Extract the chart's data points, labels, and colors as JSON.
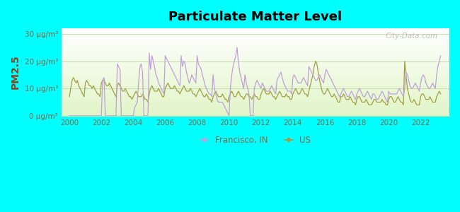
{
  "title": "Particulate Matter Level",
  "ylabel": "PM2.5",
  "ylim": [
    0,
    32
  ],
  "yticks": [
    0,
    10,
    20,
    30
  ],
  "ytick_labels": [
    "0 μg/m³",
    "10 μg/m³",
    "20 μg/m³",
    "30 μg/m³"
  ],
  "xlim": [
    1999.5,
    2023.8
  ],
  "xticks": [
    2000,
    2002,
    2004,
    2006,
    2008,
    2010,
    2012,
    2014,
    2016,
    2018,
    2020,
    2022
  ],
  "background_outer": "#00ffff",
  "francisco_color": "#c0a0d8",
  "us_color": "#a0a040",
  "ylabel_color": "#884422",
  "tick_color": "#886644",
  "grid_color": "#c8e0b0",
  "legend_francisco": "Francisco, IN",
  "legend_us": "US",
  "watermark": "City-Data.com",
  "francisco_x": [
    2000.0,
    2000.08,
    2000.17,
    2000.25,
    2000.33,
    2000.42,
    2000.5,
    2000.58,
    2000.67,
    2000.75,
    2000.83,
    2000.92,
    2001.0,
    2001.08,
    2001.17,
    2001.25,
    2001.33,
    2001.42,
    2001.5,
    2001.58,
    2001.67,
    2001.75,
    2001.83,
    2001.92,
    2002.0,
    2002.08,
    2002.17,
    2002.25,
    2002.33,
    2002.42,
    2002.5,
    2002.58,
    2002.67,
    2002.75,
    2002.83,
    2002.92,
    2003.0,
    2003.08,
    2003.17,
    2003.25,
    2003.33,
    2003.42,
    2003.5,
    2003.58,
    2003.67,
    2003.75,
    2003.83,
    2003.92,
    2004.0,
    2004.08,
    2004.17,
    2004.25,
    2004.33,
    2004.42,
    2004.5,
    2004.58,
    2004.67,
    2004.75,
    2004.83,
    2004.92,
    2005.0,
    2005.08,
    2005.17,
    2005.25,
    2005.33,
    2005.42,
    2005.5,
    2005.58,
    2005.67,
    2005.75,
    2005.83,
    2005.92,
    2006.0,
    2006.08,
    2006.17,
    2006.25,
    2006.33,
    2006.42,
    2006.5,
    2006.58,
    2006.67,
    2006.75,
    2006.83,
    2006.92,
    2007.0,
    2007.08,
    2007.17,
    2007.25,
    2007.33,
    2007.42,
    2007.5,
    2007.58,
    2007.67,
    2007.75,
    2007.83,
    2007.92,
    2008.0,
    2008.08,
    2008.17,
    2008.25,
    2008.33,
    2008.42,
    2008.5,
    2008.58,
    2008.67,
    2008.75,
    2008.83,
    2008.92,
    2009.0,
    2009.08,
    2009.17,
    2009.25,
    2009.33,
    2009.42,
    2009.5,
    2009.58,
    2009.67,
    2009.75,
    2009.83,
    2009.92,
    2010.0,
    2010.08,
    2010.17,
    2010.25,
    2010.33,
    2010.42,
    2010.5,
    2010.58,
    2010.67,
    2010.75,
    2010.83,
    2010.92,
    2011.0,
    2011.08,
    2011.17,
    2011.25,
    2011.33,
    2011.42,
    2011.5,
    2011.58,
    2011.67,
    2011.75,
    2011.83,
    2011.92,
    2012.0,
    2012.08,
    2012.17,
    2012.25,
    2012.33,
    2012.42,
    2012.5,
    2012.58,
    2012.67,
    2012.75,
    2012.83,
    2012.92,
    2013.0,
    2013.08,
    2013.17,
    2013.25,
    2013.33,
    2013.42,
    2013.5,
    2013.58,
    2013.67,
    2013.75,
    2013.83,
    2013.92,
    2014.0,
    2014.08,
    2014.17,
    2014.25,
    2014.33,
    2014.42,
    2014.5,
    2014.58,
    2014.67,
    2014.75,
    2014.83,
    2014.92,
    2015.0,
    2015.08,
    2015.17,
    2015.25,
    2015.33,
    2015.42,
    2015.5,
    2015.58,
    2015.67,
    2015.75,
    2015.83,
    2015.92,
    2016.0,
    2016.08,
    2016.17,
    2016.25,
    2016.33,
    2016.42,
    2016.5,
    2016.58,
    2016.67,
    2016.75,
    2016.83,
    2016.92,
    2017.0,
    2017.08,
    2017.17,
    2017.25,
    2017.33,
    2017.42,
    2017.5,
    2017.58,
    2017.67,
    2017.75,
    2017.83,
    2017.92,
    2018.0,
    2018.08,
    2018.17,
    2018.25,
    2018.33,
    2018.42,
    2018.5,
    2018.58,
    2018.67,
    2018.75,
    2018.83,
    2018.92,
    2019.0,
    2019.08,
    2019.17,
    2019.25,
    2019.33,
    2019.42,
    2019.5,
    2019.58,
    2019.67,
    2019.75,
    2019.83,
    2019.92,
    2020.0,
    2020.08,
    2020.17,
    2020.25,
    2020.33,
    2020.42,
    2020.5,
    2020.58,
    2020.67,
    2020.75,
    2020.83,
    2020.92,
    2021.0,
    2021.08,
    2021.17,
    2021.25,
    2021.33,
    2021.42,
    2021.5,
    2021.58,
    2021.67,
    2021.75,
    2021.83,
    2021.92,
    2022.0,
    2022.08,
    2022.17,
    2022.25,
    2022.33,
    2022.42,
    2022.5,
    2022.58,
    2022.67,
    2022.75,
    2022.83,
    2022.92,
    2023.0,
    2023.08,
    2023.17,
    2023.25
  ],
  "francisco_y": [
    0,
    0,
    0,
    0,
    0,
    0,
    0,
    0,
    0,
    0,
    0,
    0,
    0,
    0,
    0,
    0,
    0,
    0,
    0,
    0,
    0,
    0,
    0,
    0,
    0,
    13,
    14,
    0,
    0,
    0,
    0,
    0,
    0,
    0,
    0,
    0,
    19,
    18,
    17,
    0,
    0,
    0,
    0,
    0,
    0,
    0,
    0,
    0,
    0,
    3,
    4,
    5,
    12,
    18,
    19,
    16,
    0,
    0,
    0,
    0,
    23,
    17,
    22,
    20,
    18,
    15,
    14,
    12,
    11,
    10,
    9,
    8,
    22,
    21,
    20,
    19,
    18,
    17,
    16,
    15,
    14,
    13,
    12,
    11,
    22,
    18,
    20,
    19,
    16,
    14,
    12,
    13,
    15,
    14,
    13,
    12,
    22,
    19,
    18,
    17,
    15,
    13,
    11,
    10,
    9,
    8,
    8,
    7,
    15,
    10,
    8,
    6,
    5,
    5,
    5,
    5,
    4,
    3,
    2,
    1,
    0,
    10,
    15,
    18,
    20,
    22,
    25,
    20,
    16,
    14,
    12,
    10,
    15,
    12,
    10,
    8,
    0,
    0,
    0,
    10,
    12,
    13,
    12,
    11,
    10,
    12,
    11,
    10,
    9,
    9,
    9,
    10,
    11,
    10,
    9,
    8,
    13,
    14,
    15,
    16,
    14,
    12,
    11,
    10,
    9,
    9,
    9,
    8,
    14,
    15,
    14,
    13,
    12,
    12,
    12,
    13,
    14,
    13,
    12,
    11,
    18,
    17,
    16,
    15,
    14,
    13,
    13,
    14,
    15,
    14,
    13,
    12,
    15,
    17,
    16,
    15,
    14,
    13,
    12,
    11,
    10,
    9,
    8,
    7,
    8,
    9,
    10,
    9,
    8,
    7,
    7,
    8,
    9,
    8,
    7,
    6,
    8,
    9,
    10,
    9,
    8,
    7,
    7,
    8,
    9,
    8,
    7,
    6,
    8,
    8,
    7,
    6,
    6,
    7,
    8,
    9,
    8,
    7,
    6,
    5,
    9,
    8,
    8,
    8,
    8,
    8,
    8,
    9,
    10,
    9,
    8,
    7,
    10,
    16,
    15,
    13,
    11,
    10,
    10,
    11,
    12,
    11,
    10,
    9,
    12,
    14,
    15,
    14,
    12,
    11,
    10,
    10,
    11,
    12,
    11,
    10,
    15,
    18,
    20,
    22
  ],
  "us_x": [
    2000.0,
    2000.08,
    2000.17,
    2000.25,
    2000.33,
    2000.42,
    2000.5,
    2000.58,
    2000.67,
    2000.75,
    2000.83,
    2000.92,
    2001.0,
    2001.08,
    2001.17,
    2001.25,
    2001.33,
    2001.42,
    2001.5,
    2001.58,
    2001.67,
    2001.75,
    2001.83,
    2001.92,
    2002.0,
    2002.08,
    2002.17,
    2002.25,
    2002.33,
    2002.42,
    2002.5,
    2002.58,
    2002.67,
    2002.75,
    2002.83,
    2002.92,
    2003.0,
    2003.08,
    2003.17,
    2003.25,
    2003.33,
    2003.42,
    2003.5,
    2003.58,
    2003.67,
    2003.75,
    2003.83,
    2003.92,
    2004.0,
    2004.08,
    2004.17,
    2004.25,
    2004.33,
    2004.42,
    2004.5,
    2004.58,
    2004.67,
    2004.75,
    2004.83,
    2004.92,
    2005.0,
    2005.08,
    2005.17,
    2005.25,
    2005.33,
    2005.42,
    2005.5,
    2005.58,
    2005.67,
    2005.75,
    2005.83,
    2005.92,
    2006.0,
    2006.08,
    2006.17,
    2006.25,
    2006.33,
    2006.42,
    2006.5,
    2006.58,
    2006.67,
    2006.75,
    2006.83,
    2006.92,
    2007.0,
    2007.08,
    2007.17,
    2007.25,
    2007.33,
    2007.42,
    2007.5,
    2007.58,
    2007.67,
    2007.75,
    2007.83,
    2007.92,
    2008.0,
    2008.08,
    2008.17,
    2008.25,
    2008.33,
    2008.42,
    2008.5,
    2008.58,
    2008.67,
    2008.75,
    2008.83,
    2008.92,
    2009.0,
    2009.08,
    2009.17,
    2009.25,
    2009.33,
    2009.42,
    2009.5,
    2009.58,
    2009.67,
    2009.75,
    2009.83,
    2009.92,
    2010.0,
    2010.08,
    2010.17,
    2010.25,
    2010.33,
    2010.42,
    2010.5,
    2010.58,
    2010.67,
    2010.75,
    2010.83,
    2010.92,
    2011.0,
    2011.08,
    2011.17,
    2011.25,
    2011.33,
    2011.42,
    2011.5,
    2011.58,
    2011.67,
    2011.75,
    2011.83,
    2011.92,
    2012.0,
    2012.08,
    2012.17,
    2012.25,
    2012.33,
    2012.42,
    2012.5,
    2012.58,
    2012.67,
    2012.75,
    2012.83,
    2012.92,
    2013.0,
    2013.08,
    2013.17,
    2013.25,
    2013.33,
    2013.42,
    2013.5,
    2013.58,
    2013.67,
    2013.75,
    2013.83,
    2013.92,
    2014.0,
    2014.08,
    2014.17,
    2014.25,
    2014.33,
    2014.42,
    2014.5,
    2014.58,
    2014.67,
    2014.75,
    2014.83,
    2014.92,
    2015.0,
    2015.08,
    2015.17,
    2015.25,
    2015.33,
    2015.42,
    2015.5,
    2015.58,
    2015.67,
    2015.75,
    2015.83,
    2015.92,
    2016.0,
    2016.08,
    2016.17,
    2016.25,
    2016.33,
    2016.42,
    2016.5,
    2016.58,
    2016.67,
    2016.75,
    2016.83,
    2016.92,
    2017.0,
    2017.08,
    2017.17,
    2017.25,
    2017.33,
    2017.42,
    2017.5,
    2017.58,
    2017.67,
    2017.75,
    2017.83,
    2017.92,
    2018.0,
    2018.08,
    2018.17,
    2018.25,
    2018.33,
    2018.42,
    2018.5,
    2018.58,
    2018.67,
    2018.75,
    2018.83,
    2018.92,
    2019.0,
    2019.08,
    2019.17,
    2019.25,
    2019.33,
    2019.42,
    2019.5,
    2019.58,
    2019.67,
    2019.75,
    2019.83,
    2019.92,
    2020.0,
    2020.08,
    2020.17,
    2020.25,
    2020.33,
    2020.42,
    2020.5,
    2020.58,
    2020.67,
    2020.75,
    2020.83,
    2020.92,
    2021.0,
    2021.08,
    2021.17,
    2021.25,
    2021.33,
    2021.42,
    2021.5,
    2021.58,
    2021.67,
    2021.75,
    2021.83,
    2021.92,
    2022.0,
    2022.08,
    2022.17,
    2022.25,
    2022.33,
    2022.42,
    2022.5,
    2022.58,
    2022.67,
    2022.75,
    2022.83,
    2022.92,
    2023.0,
    2023.08,
    2023.17,
    2023.25
  ],
  "us_y": [
    7,
    10,
    13,
    14,
    13,
    12,
    13,
    11,
    10,
    9,
    8,
    7,
    12,
    13,
    12,
    11,
    11,
    10,
    11,
    10,
    9,
    8,
    8,
    7,
    12,
    13,
    13,
    12,
    11,
    11,
    12,
    11,
    10,
    9,
    8,
    7,
    11,
    12,
    11,
    10,
    9,
    9,
    10,
    9,
    8,
    7,
    7,
    6,
    7,
    8,
    9,
    8,
    7,
    7,
    7,
    8,
    7,
    6,
    6,
    5,
    8,
    10,
    11,
    10,
    9,
    9,
    9,
    10,
    9,
    8,
    7,
    7,
    10,
    11,
    12,
    11,
    10,
    10,
    10,
    11,
    10,
    9,
    9,
    8,
    9,
    10,
    11,
    10,
    9,
    9,
    9,
    10,
    9,
    8,
    8,
    7,
    8,
    9,
    10,
    9,
    8,
    7,
    7,
    8,
    7,
    6,
    6,
    5,
    7,
    8,
    9,
    8,
    7,
    7,
    7,
    8,
    7,
    6,
    6,
    5,
    7,
    8,
    9,
    8,
    7,
    7,
    8,
    9,
    8,
    7,
    7,
    6,
    7,
    8,
    8,
    7,
    7,
    6,
    7,
    8,
    7,
    7,
    6,
    6,
    8,
    9,
    10,
    9,
    8,
    8,
    8,
    9,
    8,
    7,
    7,
    6,
    7,
    8,
    9,
    8,
    7,
    7,
    7,
    8,
    7,
    7,
    6,
    6,
    8,
    9,
    10,
    9,
    8,
    8,
    9,
    10,
    9,
    8,
    8,
    7,
    9,
    11,
    13,
    15,
    18,
    20,
    19,
    16,
    13,
    11,
    9,
    8,
    8,
    9,
    10,
    9,
    8,
    7,
    7,
    8,
    7,
    6,
    5,
    5,
    7,
    7,
    8,
    7,
    6,
    6,
    6,
    7,
    6,
    5,
    5,
    4,
    6,
    7,
    7,
    6,
    5,
    5,
    5,
    6,
    5,
    4,
    4,
    4,
    5,
    6,
    6,
    5,
    5,
    5,
    5,
    6,
    5,
    5,
    4,
    4,
    6,
    7,
    7,
    6,
    5,
    5,
    6,
    7,
    6,
    5,
    5,
    4,
    20,
    15,
    10,
    8,
    6,
    5,
    5,
    6,
    5,
    4,
    4,
    4,
    7,
    8,
    8,
    7,
    6,
    6,
    6,
    7,
    6,
    5,
    5,
    5,
    7,
    8,
    9,
    8
  ]
}
